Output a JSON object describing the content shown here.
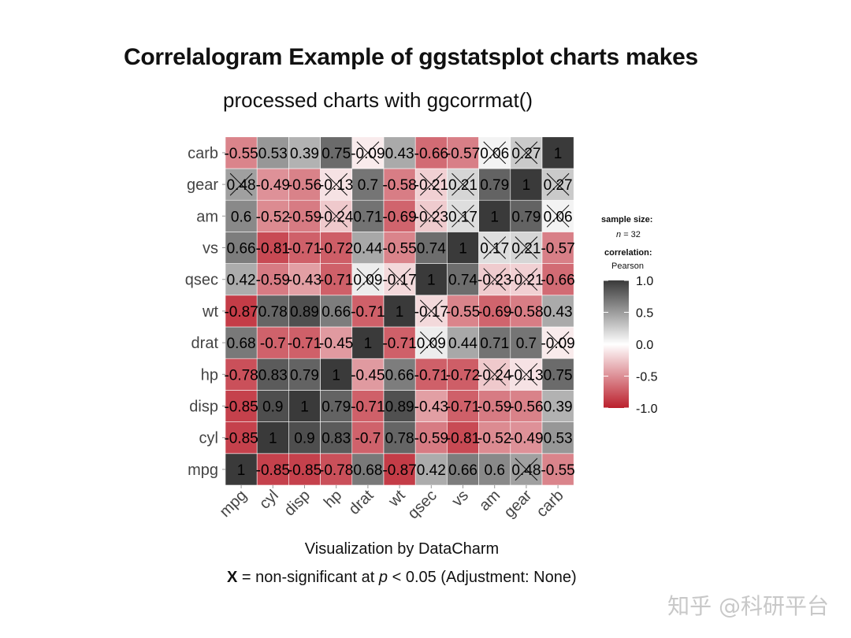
{
  "chart_data": {
    "type": "heatmap",
    "title": "Correlalogram Example of ggstatsplot charts makes",
    "subtitle": "processed charts with ggcorrmat()",
    "caption": "Visualization by DataCharm",
    "footnote": {
      "mark": "X",
      "text1": " = non-significant at ",
      "p": "p",
      "text2": " < 0.05 (Adjustment: None)"
    },
    "variables": [
      "mpg",
      "cyl",
      "disp",
      "hp",
      "drat",
      "wt",
      "qsec",
      "vs",
      "am",
      "gear",
      "carb"
    ],
    "matrix": [
      [
        1,
        -0.85,
        -0.85,
        -0.78,
        0.68,
        -0.87,
        0.42,
        0.66,
        0.6,
        0.48,
        -0.55
      ],
      [
        -0.85,
        1,
        0.9,
        0.83,
        -0.7,
        0.78,
        -0.59,
        -0.81,
        -0.52,
        -0.49,
        0.53
      ],
      [
        -0.85,
        0.9,
        1,
        0.79,
        -0.71,
        0.89,
        -0.43,
        -0.71,
        -0.59,
        -0.56,
        0.39
      ],
      [
        -0.78,
        0.83,
        0.79,
        1,
        -0.45,
        0.66,
        -0.71,
        -0.72,
        -0.24,
        -0.13,
        0.75
      ],
      [
        0.68,
        -0.7,
        -0.71,
        -0.45,
        1,
        -0.71,
        0.09,
        0.44,
        0.71,
        0.7,
        -0.09
      ],
      [
        -0.87,
        0.78,
        0.89,
        0.66,
        -0.71,
        1,
        -0.17,
        -0.55,
        -0.69,
        -0.58,
        0.43
      ],
      [
        0.42,
        -0.59,
        -0.43,
        -0.71,
        0.09,
        -0.17,
        1,
        0.74,
        -0.23,
        -0.21,
        -0.66
      ],
      [
        0.66,
        -0.81,
        -0.71,
        -0.72,
        0.44,
        -0.55,
        0.74,
        1,
        0.17,
        0.21,
        -0.57
      ],
      [
        0.6,
        -0.52,
        -0.59,
        -0.24,
        0.71,
        -0.69,
        -0.23,
        0.17,
        1,
        0.79,
        0.06
      ],
      [
        0.48,
        -0.49,
        -0.56,
        -0.13,
        0.7,
        -0.58,
        -0.21,
        0.21,
        0.79,
        1,
        0.27
      ],
      [
        -0.55,
        0.53,
        0.39,
        0.75,
        -0.09,
        0.43,
        -0.66,
        -0.57,
        0.06,
        0.27,
        1
      ]
    ],
    "non_significant": [
      [
        "mpg",
        "gear"
      ],
      [
        "hp",
        "am"
      ],
      [
        "hp",
        "gear"
      ],
      [
        "drat",
        "qsec"
      ],
      [
        "drat",
        "carb"
      ],
      [
        "wt",
        "qsec"
      ],
      [
        "qsec",
        "am"
      ],
      [
        "qsec",
        "gear"
      ],
      [
        "vs",
        "am"
      ],
      [
        "vs",
        "gear"
      ],
      [
        "am",
        "carb"
      ],
      [
        "gear",
        "carb"
      ]
    ],
    "legend": {
      "sample_size_label": "sample size:",
      "n_label": "n",
      "n_value": "= 32",
      "correlation_label": "correlation:",
      "method": "Pearson",
      "ticks": [
        "1.0",
        "0.5",
        "0.0",
        "-0.5",
        "-1.0"
      ],
      "colors": {
        "low": "#bb1f2c",
        "mid": "#ffffff",
        "high": "#3a3a3a"
      }
    }
  },
  "watermark": "知乎 @科研平台"
}
